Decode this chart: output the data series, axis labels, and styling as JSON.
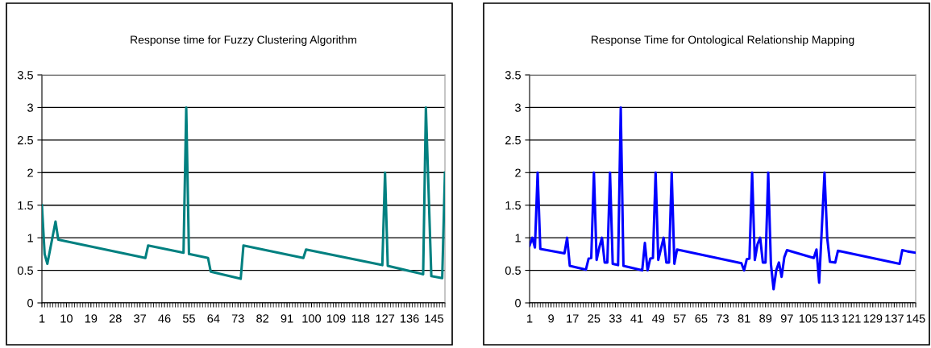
{
  "chart_data": [
    {
      "type": "line",
      "title": "Response time for Fuzzy Clustering Algorithm",
      "x": [
        1,
        2,
        3,
        6,
        7,
        38,
        39,
        40,
        53,
        54,
        55,
        61,
        62,
        63,
        74,
        75,
        96,
        97,
        98,
        126,
        127,
        128,
        140,
        141,
        142,
        144,
        148,
        149
      ],
      "series": [
        {
          "color": "#008080",
          "values": [
            1.5,
            0.75,
            0.6,
            1.25,
            0.97,
            0.7,
            0.69,
            0.88,
            0.77,
            3.0,
            0.75,
            0.7,
            0.69,
            0.48,
            0.37,
            0.88,
            0.7,
            0.69,
            0.82,
            0.58,
            2.0,
            0.57,
            0.45,
            0.44,
            3.0,
            0.41,
            0.38,
            2.0
          ]
        }
      ],
      "xlim": [
        1,
        149
      ],
      "xticks": [
        1,
        10,
        19,
        28,
        37,
        46,
        55,
        64,
        73,
        82,
        91,
        100,
        109,
        118,
        127,
        136,
        145
      ],
      "ylim": [
        0,
        3.5
      ],
      "yticks": [
        0,
        0.5,
        1,
        1.5,
        2,
        2.5,
        3,
        3.5
      ],
      "grid": "y",
      "marker": "none",
      "line_style": "solid"
    },
    {
      "type": "line",
      "title": "Response Time for Ontological Relationship Mapping",
      "x": [
        1,
        2,
        3,
        4,
        5,
        14,
        15,
        16,
        22,
        23,
        24,
        25,
        26,
        27,
        28,
        29,
        30,
        31,
        32,
        34,
        35,
        36,
        42,
        43,
        44,
        45,
        46,
        47,
        48,
        49,
        51,
        52,
        53,
        54,
        55,
        56,
        80,
        81,
        82,
        83,
        84,
        85,
        86,
        87,
        88,
        89,
        90,
        91,
        92,
        93,
        94,
        95,
        96,
        97,
        107,
        108,
        109,
        110,
        111,
        112,
        113,
        115,
        116,
        139,
        140,
        142,
        145
      ],
      "series": [
        {
          "color": "#0000ff",
          "values": [
            0.88,
            1.0,
            0.85,
            2.0,
            0.83,
            0.76,
            1.0,
            0.57,
            0.51,
            0.68,
            0.69,
            2.0,
            0.66,
            0.85,
            1.0,
            0.62,
            0.62,
            2.0,
            0.6,
            0.58,
            3.0,
            0.57,
            0.51,
            0.5,
            0.92,
            0.5,
            0.68,
            0.69,
            2.0,
            0.66,
            1.0,
            0.62,
            0.62,
            2.0,
            0.6,
            0.82,
            0.61,
            0.5,
            0.67,
            0.68,
            2.0,
            0.66,
            0.9,
            1.0,
            0.62,
            0.62,
            2.0,
            0.6,
            0.21,
            0.5,
            0.62,
            0.4,
            0.7,
            0.81,
            0.69,
            0.82,
            0.31,
            1.15,
            2.0,
            1.0,
            0.63,
            0.62,
            0.8,
            0.6,
            0.81,
            0.79,
            0.77
          ]
        }
      ],
      "xlim": [
        1,
        145
      ],
      "xticks": [
        1,
        9,
        17,
        25,
        33,
        41,
        49,
        57,
        65,
        73,
        81,
        89,
        97,
        105,
        113,
        121,
        129,
        137,
        145
      ],
      "ylim": [
        0,
        3.5
      ],
      "yticks": [
        0,
        0.5,
        1,
        1.5,
        2,
        2.5,
        3,
        3.5
      ],
      "grid": "y",
      "marker": "none",
      "line_style": "solid"
    }
  ]
}
